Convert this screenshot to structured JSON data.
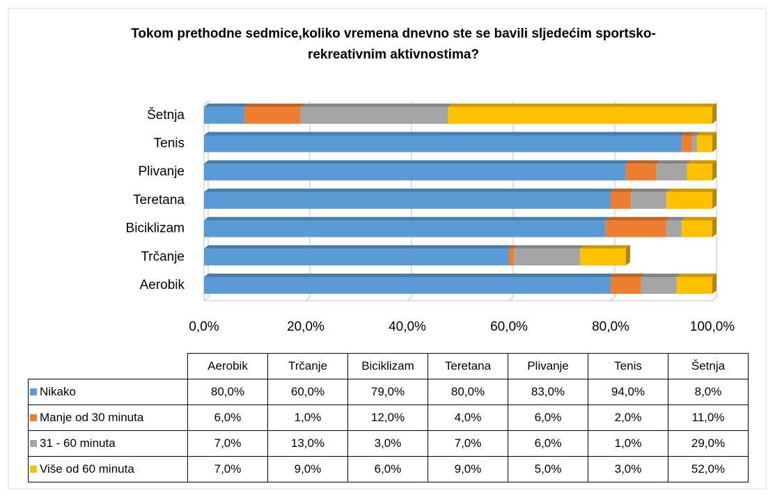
{
  "chart_data": {
    "type": "stacked_barh",
    "title": "Tokom prethodne sedmice,koliko vremena dnevno ste se bavili sljedećim sportsko-rekreativnim aktivnostima?",
    "categories": [
      "Aerobik",
      "Trčanje",
      "Biciklizam",
      "Teretana",
      "Plivanje",
      "Tenis",
      "Šetnja"
    ],
    "series": [
      {
        "name": "Nikako",
        "color": "#5b9bd5",
        "values": [
          80,
          60,
          79,
          80,
          83,
          94,
          8
        ],
        "value_labels": [
          "80,0%",
          "60,0%",
          "79,0%",
          "80,0%",
          "83,0%",
          "94,0%",
          "8,0%"
        ]
      },
      {
        "name": "Manje od 30 minuta",
        "color": "#ed7d31",
        "values": [
          6,
          1,
          12,
          4,
          6,
          2,
          11
        ],
        "value_labels": [
          "6,0%",
          "1,0%",
          "12,0%",
          "4,0%",
          "6,0%",
          "2,0%",
          "11,0%"
        ]
      },
      {
        "name": "31 - 60 minuta",
        "color": "#a5a5a5",
        "values": [
          7,
          13,
          3,
          7,
          6,
          1,
          29
        ],
        "value_labels": [
          "7,0%",
          "13,0%",
          "3,0%",
          "7,0%",
          "6,0%",
          "1,0%",
          "29,0%"
        ]
      },
      {
        "name": "Više od 60 minuta",
        "color": "#ffc000",
        "values": [
          7,
          9,
          6,
          9,
          5,
          3,
          52
        ],
        "value_labels": [
          "7,0%",
          "9,0%",
          "6,0%",
          "9,0%",
          "5,0%",
          "3,0%",
          "52,0%"
        ]
      }
    ],
    "xlim": [
      0,
      100
    ],
    "xticks": [
      {
        "value": 0,
        "label": "0,0%"
      },
      {
        "value": 20,
        "label": "20,0%"
      },
      {
        "value": 40,
        "label": "40,0%"
      },
      {
        "value": 60,
        "label": "60,0%"
      },
      {
        "value": 80,
        "label": "80,0%"
      },
      {
        "value": 100,
        "label": "100,0%"
      }
    ],
    "grid": true
  }
}
